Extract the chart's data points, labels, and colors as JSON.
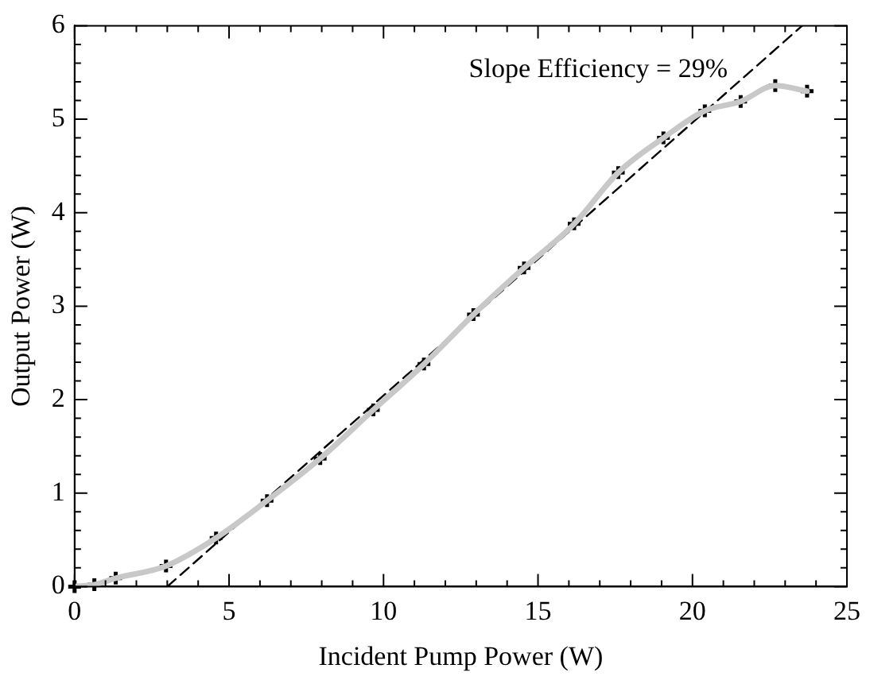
{
  "chart_data": {
    "type": "line",
    "xlabel": "Incident Pump Power (W)",
    "ylabel": "Output Power (W)",
    "x": [
      0,
      0.64,
      1.33,
      2.96,
      4.58,
      6.23,
      7.95,
      9.67,
      11.31,
      12.91,
      14.55,
      16.17,
      17.6,
      19.06,
      20.4,
      21.56,
      22.68,
      23.71
    ],
    "series": [
      {
        "color": "#c8c8c8",
        "marker": "none",
        "values": [
          0,
          0.02,
          0.09,
          0.22,
          0.52,
          0.92,
          1.37,
          1.89,
          2.38,
          2.91,
          3.41,
          3.88,
          4.43,
          4.8,
          5.09,
          5.19,
          5.36,
          5.3
        ]
      },
      {
        "type": "scatter",
        "color": "#000000",
        "marker": "cross",
        "values": [
          0,
          0.02,
          0.09,
          0.22,
          0.52,
          0.92,
          1.37,
          1.89,
          2.38,
          2.91,
          3.41,
          3.88,
          4.43,
          4.8,
          5.09,
          5.19,
          5.36,
          5.3
        ]
      },
      {
        "type": "line",
        "color": "#000000",
        "marker": "none",
        "line_style": "dashed",
        "x": [
          3.0,
          23.55
        ],
        "values": [
          0,
          6
        ]
      }
    ],
    "xlim": [
      0,
      25
    ],
    "xticks": [
      0,
      {
        "value": 1,
        "label": null
      },
      {
        "value": 2,
        "label": null
      },
      {
        "value": 3,
        "label": null
      },
      {
        "value": 4,
        "label": null
      },
      5,
      {
        "value": 6,
        "label": null
      },
      {
        "value": 7,
        "label": null
      },
      {
        "value": 8,
        "label": null
      },
      {
        "value": 9,
        "label": null
      },
      10,
      {
        "value": 11,
        "label": null
      },
      {
        "value": 12,
        "label": null
      },
      {
        "value": 13,
        "label": null
      },
      {
        "value": 14,
        "label": null
      },
      15,
      {
        "value": 16,
        "label": null
      },
      {
        "value": 17,
        "label": null
      },
      {
        "value": 18,
        "label": null
      },
      {
        "value": 19,
        "label": null
      },
      20,
      {
        "value": 21,
        "label": null
      },
      {
        "value": 22,
        "label": null
      },
      {
        "value": 23,
        "label": null
      },
      {
        "value": 24,
        "label": null
      },
      25
    ],
    "ylim": [
      0,
      6
    ],
    "yticks": [
      0,
      {
        "value": 0.2,
        "label": null
      },
      {
        "value": 0.4,
        "label": null
      },
      {
        "value": 0.6,
        "label": null
      },
      {
        "value": 0.8,
        "label": null
      },
      1,
      {
        "value": 1.2,
        "label": null
      },
      {
        "value": 1.4,
        "label": null
      },
      {
        "value": 1.6,
        "label": null
      },
      {
        "value": 1.8,
        "label": null
      },
      2,
      {
        "value": 2.2,
        "label": null
      },
      {
        "value": 2.4,
        "label": null
      },
      {
        "value": 2.6,
        "label": null
      },
      {
        "value": 2.8,
        "label": null
      },
      3,
      {
        "value": 3.2,
        "label": null
      },
      {
        "value": 3.4,
        "label": null
      },
      {
        "value": 3.6,
        "label": null
      },
      {
        "value": 3.8,
        "label": null
      },
      4,
      {
        "value": 4.2,
        "label": null
      },
      {
        "value": 4.4,
        "label": null
      },
      {
        "value": 4.6,
        "label": null
      },
      {
        "value": 4.8,
        "label": null
      },
      5,
      {
        "value": 5.2,
        "label": null
      },
      {
        "value": 5.4,
        "label": null
      },
      {
        "value": 5.6,
        "label": null
      },
      {
        "value": 5.8,
        "label": null
      },
      6
    ],
    "grid": false,
    "legend": false,
    "annotations": [
      "Slope Efficiency = 29%"
    ]
  }
}
